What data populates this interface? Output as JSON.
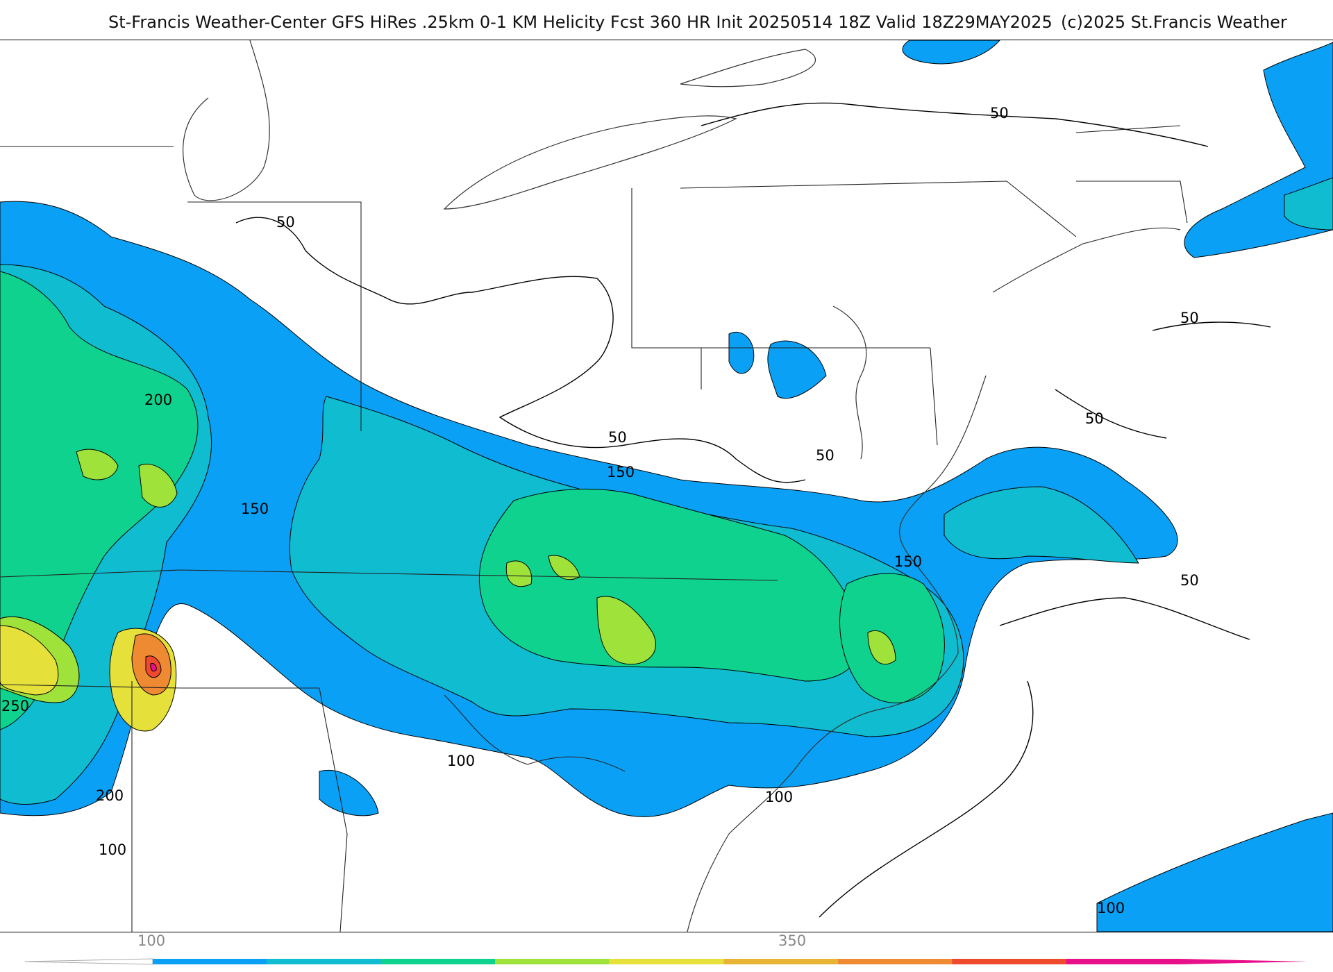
{
  "title": {
    "main": "St-Francis Weather-Center GFS HiRes .25km 0-1 KM Helicity Fcst 360 HR Init 20250514 18Z  Valid 18Z29MAY2025",
    "credit": "(c)2025 St.Francis Weather"
  },
  "map": {
    "field": "0-1 KM Helicity",
    "contour_labels": [
      "50",
      "50",
      "50",
      "50",
      "50",
      "50",
      "50",
      "150",
      "150",
      "150",
      "200",
      "200",
      "250",
      "100",
      "100",
      "100",
      "100"
    ]
  },
  "colorbar": {
    "tick_labels": [
      "100",
      "350"
    ],
    "colors": [
      "#0aa0f5",
      "#10bcd0",
      "#0fd28f",
      "#9ee23a",
      "#e6e03a",
      "#e8b436",
      "#ee8a32",
      "#f04a2e",
      "#e8108a"
    ]
  }
}
